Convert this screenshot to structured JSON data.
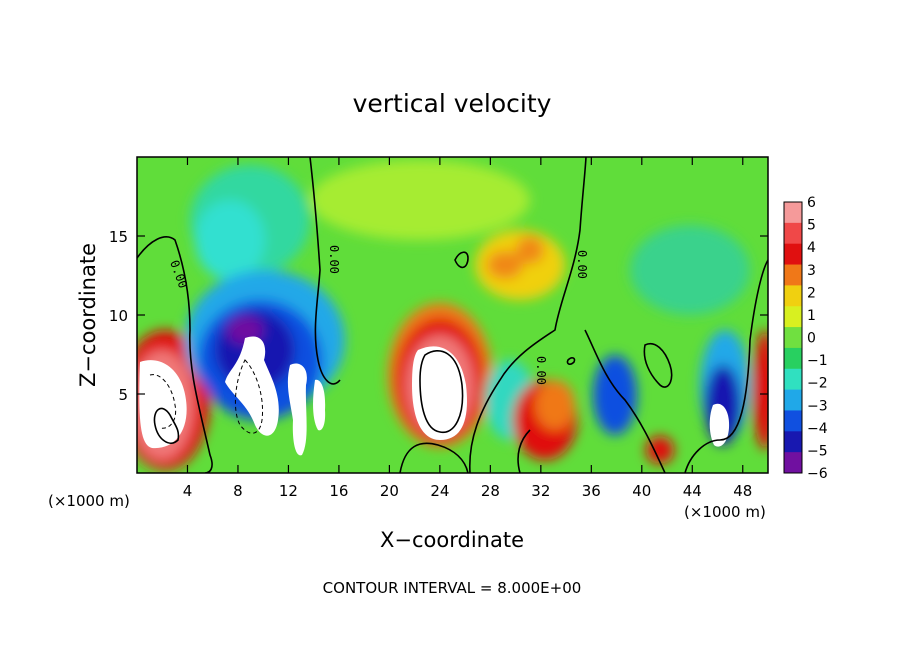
{
  "chart_data": {
    "type": "heatmap",
    "title": "vertical velocity",
    "xlabel": "X−coordinate",
    "ylabel": "Z−coordinate",
    "x_unit_left": "(×1000 m)",
    "x_unit_right": "(×1000 m)",
    "xlim": [
      0,
      50
    ],
    "ylim": [
      0,
      20
    ],
    "x_ticks": [
      4,
      8,
      12,
      16,
      20,
      24,
      28,
      32,
      36,
      40,
      44,
      48
    ],
    "x_tick_labels": [
      "4",
      "8",
      "12",
      "16",
      "20",
      "24",
      "28",
      "32",
      "36",
      "40",
      "44",
      "48"
    ],
    "y_ticks": [
      5,
      10,
      15
    ],
    "y_tick_labels": [
      "5",
      "10",
      "15"
    ],
    "colorbar": {
      "levels": [
        6,
        5,
        4,
        3,
        2,
        1,
        0,
        -1,
        -2,
        -3,
        -4,
        -5,
        -6
      ],
      "labels": [
        "6",
        "5",
        "4",
        "3",
        "2",
        "1",
        "0",
        "−1",
        "−2",
        "−3",
        "−4",
        "−5",
        "−6"
      ],
      "colors": [
        "#f59a9a",
        "#f04848",
        "#e01010",
        "#f07818",
        "#f0d010",
        "#d8f020",
        "#70e040",
        "#28d060",
        "#30e0c0",
        "#20a8e8",
        "#1050e0",
        "#1818b0",
        "#7010a0"
      ]
    },
    "contour_labels": [
      "0.00",
      "0.00",
      "0.00",
      "0.00"
    ],
    "footer": "CONTOUR INTERVAL = 8.000E+00"
  }
}
